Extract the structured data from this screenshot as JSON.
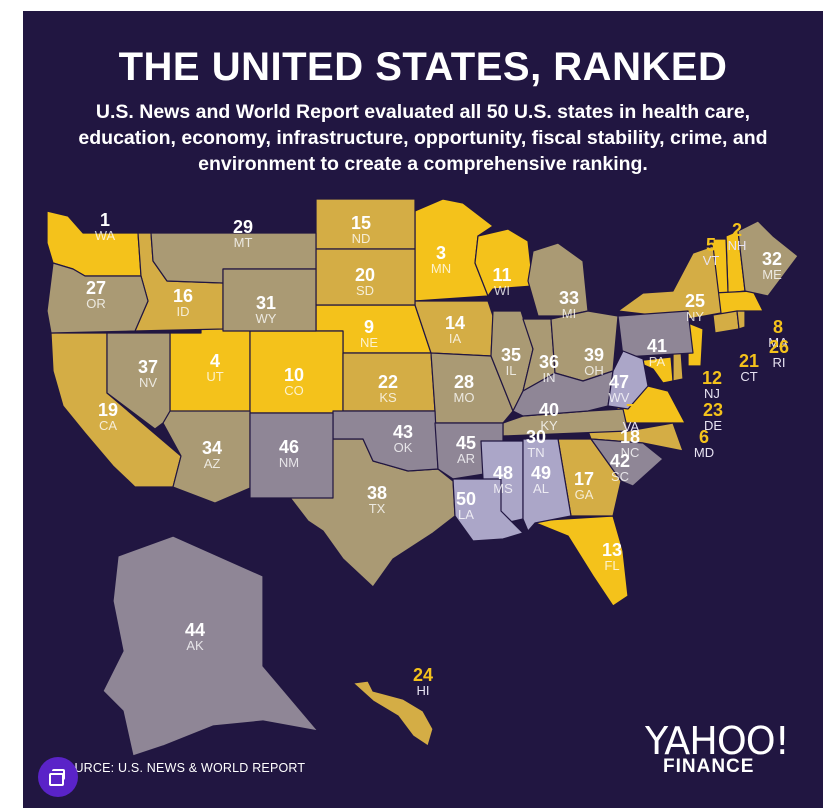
{
  "title": "THE UNITED STATES, RANKED",
  "subtitle": "U.S. News and World Report evaluated all 50 U.S. states in health care, education, economy, infrastructure, opportunity, fiscal stability, crime, and environment to create a comprehensive ranking.",
  "source": "SOURCE: U.S. NEWS & WORLD REPORT",
  "brand": {
    "line1": "YAHOO!",
    "line2": "FINANCE"
  },
  "colors": {
    "background": "#211641",
    "top_tier": "#f4c21b",
    "upper_tier": "#d4ad45",
    "middle_tier": "#aa9a74",
    "lower_tier": "#8f8696",
    "bottom_tier": "#aba6c8",
    "label_light": "#ffffff",
    "label_dark": "#f4c21b"
  },
  "map": {
    "states": [
      {
        "abbr": "WA",
        "rank": "1"
      },
      {
        "abbr": "NH",
        "rank": "2"
      },
      {
        "abbr": "MN",
        "rank": "3"
      },
      {
        "abbr": "UT",
        "rank": "4"
      },
      {
        "abbr": "VT",
        "rank": "5"
      },
      {
        "abbr": "MD",
        "rank": "6"
      },
      {
        "abbr": "VA",
        "rank": "7"
      },
      {
        "abbr": "MA",
        "rank": "8"
      },
      {
        "abbr": "NE",
        "rank": "9"
      },
      {
        "abbr": "CO",
        "rank": "10"
      },
      {
        "abbr": "WI",
        "rank": "11"
      },
      {
        "abbr": "NJ",
        "rank": "12"
      },
      {
        "abbr": "FL",
        "rank": "13"
      },
      {
        "abbr": "IA",
        "rank": "14"
      },
      {
        "abbr": "ND",
        "rank": "15"
      },
      {
        "abbr": "ID",
        "rank": "16"
      },
      {
        "abbr": "GA",
        "rank": "17"
      },
      {
        "abbr": "NC",
        "rank": "18"
      },
      {
        "abbr": "CA",
        "rank": "19"
      },
      {
        "abbr": "SD",
        "rank": "20"
      },
      {
        "abbr": "CT",
        "rank": "21"
      },
      {
        "abbr": "KS",
        "rank": "22"
      },
      {
        "abbr": "DE",
        "rank": "23"
      },
      {
        "abbr": "HI",
        "rank": "24"
      },
      {
        "abbr": "NY",
        "rank": "25"
      },
      {
        "abbr": "RI",
        "rank": "26"
      },
      {
        "abbr": "OR",
        "rank": "27"
      },
      {
        "abbr": "MO",
        "rank": "28"
      },
      {
        "abbr": "MT",
        "rank": "29"
      },
      {
        "abbr": "TN",
        "rank": "30"
      },
      {
        "abbr": "WY",
        "rank": "31"
      },
      {
        "abbr": "ME",
        "rank": "32"
      },
      {
        "abbr": "MI",
        "rank": "33"
      },
      {
        "abbr": "AZ",
        "rank": "34"
      },
      {
        "abbr": "IL",
        "rank": "35"
      },
      {
        "abbr": "IN",
        "rank": "36"
      },
      {
        "abbr": "NV",
        "rank": "37"
      },
      {
        "abbr": "TX",
        "rank": "38"
      },
      {
        "abbr": "OH",
        "rank": "39"
      },
      {
        "abbr": "KY",
        "rank": "40"
      },
      {
        "abbr": "PA",
        "rank": "41"
      },
      {
        "abbr": "SC",
        "rank": "42"
      },
      {
        "abbr": "OK",
        "rank": "43"
      },
      {
        "abbr": "AK",
        "rank": "44"
      },
      {
        "abbr": "AR",
        "rank": "45"
      },
      {
        "abbr": "NM",
        "rank": "46"
      },
      {
        "abbr": "WV",
        "rank": "47"
      },
      {
        "abbr": "MS",
        "rank": "48"
      },
      {
        "abbr": "AL",
        "rank": "49"
      },
      {
        "abbr": "LA",
        "rank": "50"
      }
    ]
  }
}
